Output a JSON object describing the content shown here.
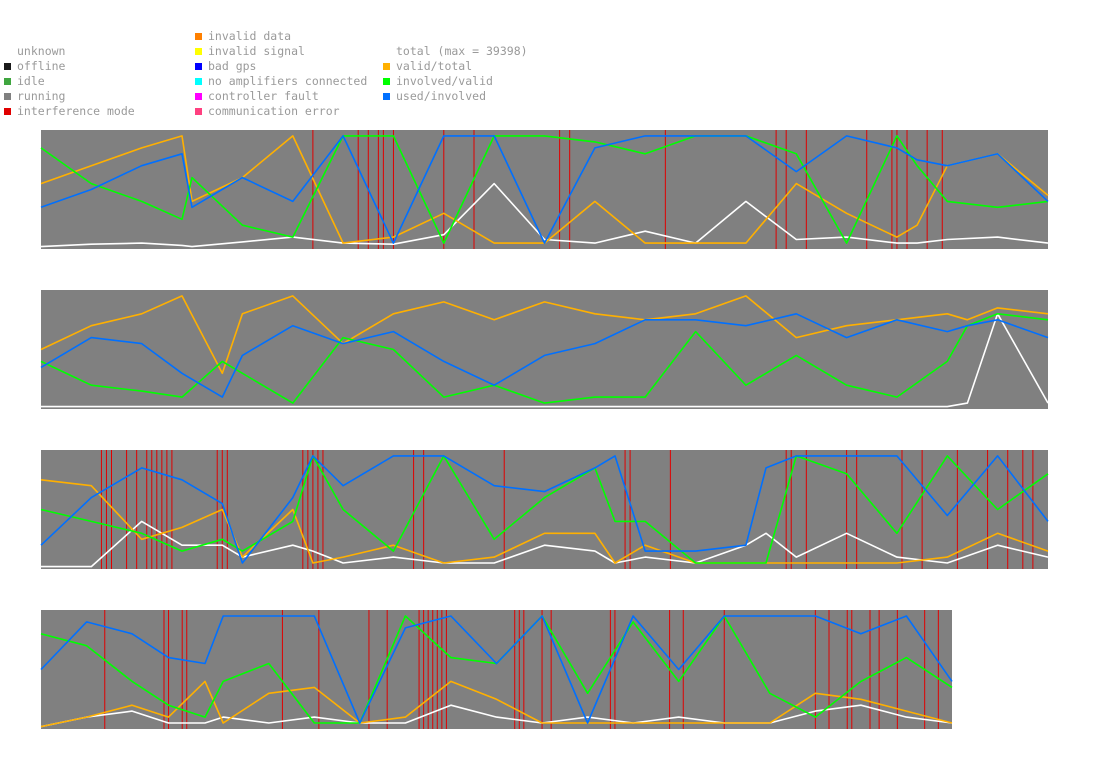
{
  "legend": {
    "col1": [
      {
        "label": "unknown",
        "color": ""
      },
      {
        "label": "offline",
        "color": "#1a1a1a"
      },
      {
        "label": "idle",
        "color": "#3fa63f"
      },
      {
        "label": "running",
        "color": "#808080"
      },
      {
        "label": "interference mode",
        "color": "#e00000"
      }
    ],
    "col2": [
      {
        "label": "invalid data",
        "color": "#ff8000"
      },
      {
        "label": "invalid signal",
        "color": "#ffff00"
      },
      {
        "label": "bad gps",
        "color": "#0000ff"
      },
      {
        "label": "no amplifiers connected",
        "color": "#00ffff"
      },
      {
        "label": "controller fault",
        "color": "#ff00ff"
      },
      {
        "label": "communication error",
        "color": "#ff4080"
      }
    ],
    "col3": [
      {
        "label": "total (max = 39398)",
        "color": ""
      },
      {
        "label": "valid/total",
        "color": "#ffb000"
      },
      {
        "label": "involved/valid",
        "color": "#00ff00"
      },
      {
        "label": "used/involved",
        "color": "#0070ff"
      }
    ]
  },
  "chart_data": {
    "type": "line",
    "panels": 4,
    "background_color": "#808080",
    "ylim": [
      0,
      1
    ],
    "total_max": 39398,
    "series": [
      {
        "name": "total (max = 39398)",
        "color": "#ffffff"
      },
      {
        "name": "valid/total",
        "color": "#ffb000"
      },
      {
        "name": "involved/valid",
        "color": "#00ff00"
      },
      {
        "name": "used/involved",
        "color": "#0070ff"
      }
    ],
    "panel_data": [
      {
        "x": [
          0,
          5,
          10,
          14,
          15,
          20,
          25,
          30,
          35,
          40,
          45,
          50,
          55,
          60,
          65,
          70,
          75,
          80,
          85,
          87,
          90,
          95,
          100
        ],
        "total": [
          0.02,
          0.04,
          0.05,
          0.03,
          0.02,
          0.06,
          0.1,
          0.05,
          0.04,
          0.12,
          0.55,
          0.08,
          0.05,
          0.15,
          0.05,
          0.4,
          0.08,
          0.1,
          0.05,
          0.05,
          0.08,
          0.1,
          0.05
        ],
        "valid_total": [
          0.55,
          0.7,
          0.85,
          0.95,
          0.4,
          0.6,
          0.95,
          0.05,
          0.1,
          0.3,
          0.05,
          0.05,
          0.4,
          0.05,
          0.05,
          0.05,
          0.55,
          0.3,
          0.1,
          0.2,
          0.7,
          0.8,
          0.45
        ],
        "involved_valid": [
          0.85,
          0.55,
          0.4,
          0.25,
          0.6,
          0.2,
          0.1,
          0.95,
          0.95,
          0.05,
          0.95,
          0.95,
          0.9,
          0.8,
          0.95,
          0.95,
          0.8,
          0.05,
          0.95,
          0.7,
          0.4,
          0.35,
          0.4
        ],
        "used_involved": [
          0.35,
          0.5,
          0.7,
          0.8,
          0.35,
          0.6,
          0.4,
          0.95,
          0.05,
          0.95,
          0.95,
          0.05,
          0.85,
          0.95,
          0.95,
          0.95,
          0.65,
          0.95,
          0.85,
          0.75,
          0.7,
          0.8,
          0.4
        ],
        "interference": [
          27.0,
          31.5,
          32.5,
          33.5,
          34.0,
          35.0,
          40.0,
          43.0,
          51.5,
          52.5,
          62.0,
          73.0,
          74.0,
          76.0,
          82.0,
          84.5,
          85.0,
          86.0,
          88.0,
          89.5
        ]
      },
      {
        "x": [
          0,
          5,
          10,
          14,
          18,
          20,
          25,
          30,
          35,
          40,
          45,
          50,
          55,
          60,
          65,
          70,
          75,
          80,
          85,
          90,
          92,
          95,
          100
        ],
        "total": [
          0.02,
          0.02,
          0.02,
          0.02,
          0.02,
          0.02,
          0.02,
          0.02,
          0.02,
          0.02,
          0.02,
          0.02,
          0.02,
          0.02,
          0.02,
          0.02,
          0.02,
          0.02,
          0.02,
          0.02,
          0.05,
          0.8,
          0.05
        ],
        "valid_total": [
          0.5,
          0.7,
          0.8,
          0.95,
          0.3,
          0.8,
          0.95,
          0.55,
          0.8,
          0.9,
          0.75,
          0.9,
          0.8,
          0.75,
          0.8,
          0.95,
          0.6,
          0.7,
          0.75,
          0.8,
          0.75,
          0.85,
          0.8
        ],
        "involved_valid": [
          0.4,
          0.2,
          0.15,
          0.1,
          0.4,
          0.3,
          0.05,
          0.6,
          0.5,
          0.1,
          0.2,
          0.05,
          0.1,
          0.1,
          0.65,
          0.2,
          0.45,
          0.2,
          0.1,
          0.4,
          0.7,
          0.8,
          0.75
        ],
        "used_involved": [
          0.35,
          0.6,
          0.55,
          0.3,
          0.1,
          0.45,
          0.7,
          0.55,
          0.65,
          0.4,
          0.2,
          0.45,
          0.55,
          0.75,
          0.75,
          0.7,
          0.8,
          0.6,
          0.75,
          0.65,
          0.7,
          0.75,
          0.6
        ],
        "interference": []
      },
      {
        "x": [
          0,
          5,
          10,
          14,
          18,
          20,
          25,
          27,
          30,
          35,
          40,
          45,
          50,
          55,
          57,
          60,
          65,
          70,
          72,
          75,
          80,
          85,
          90,
          95,
          100
        ],
        "total": [
          0.02,
          0.02,
          0.4,
          0.2,
          0.2,
          0.1,
          0.2,
          0.15,
          0.05,
          0.1,
          0.05,
          0.05,
          0.2,
          0.15,
          0.05,
          0.1,
          0.05,
          0.2,
          0.3,
          0.1,
          0.3,
          0.1,
          0.05,
          0.2,
          0.1
        ],
        "valid_total": [
          0.75,
          0.7,
          0.25,
          0.35,
          0.5,
          0.1,
          0.5,
          0.05,
          0.1,
          0.2,
          0.05,
          0.1,
          0.3,
          0.3,
          0.05,
          0.2,
          0.05,
          0.05,
          0.05,
          0.05,
          0.05,
          0.05,
          0.1,
          0.3,
          0.15
        ],
        "involved_valid": [
          0.5,
          0.4,
          0.3,
          0.15,
          0.25,
          0.15,
          0.4,
          0.95,
          0.5,
          0.15,
          0.95,
          0.25,
          0.6,
          0.85,
          0.4,
          0.4,
          0.05,
          0.05,
          0.05,
          0.95,
          0.8,
          0.3,
          0.95,
          0.5,
          0.8
        ],
        "used_involved": [
          0.2,
          0.6,
          0.85,
          0.75,
          0.55,
          0.05,
          0.6,
          0.95,
          0.7,
          0.95,
          0.95,
          0.7,
          0.65,
          0.85,
          0.95,
          0.15,
          0.15,
          0.2,
          0.85,
          0.95,
          0.95,
          0.95,
          0.45,
          0.95,
          0.4
        ],
        "interference": [
          6.0,
          6.5,
          7.0,
          8.5,
          9.5,
          10.5,
          11.0,
          11.5,
          12.0,
          12.5,
          13.0,
          17.5,
          18.0,
          18.5,
          26.0,
          26.5,
          27.0,
          27.5,
          28.0,
          37.0,
          38.0,
          46.0,
          58.0,
          58.5,
          62.5,
          74.0,
          74.5,
          76.0,
          80.0,
          81.0,
          85.5,
          87.5,
          91.0,
          94.0,
          96.0,
          97.5,
          98.5
        ]
      },
      {
        "x": [
          0,
          5,
          10,
          14,
          18,
          20,
          25,
          30,
          35,
          40,
          45,
          50,
          55,
          60,
          65,
          70,
          75,
          80,
          85,
          90,
          95,
          100
        ],
        "total": [
          0.02,
          0.1,
          0.15,
          0.05,
          0.05,
          0.1,
          0.05,
          0.1,
          0.05,
          0.05,
          0.2,
          0.1,
          0.05,
          0.1,
          0.05,
          0.1,
          0.05,
          0.05,
          0.15,
          0.2,
          0.1,
          0.05
        ],
        "valid_total": [
          0.02,
          0.1,
          0.2,
          0.1,
          0.4,
          0.05,
          0.3,
          0.35,
          0.05,
          0.1,
          0.4,
          0.25,
          0.05,
          0.05,
          0.05,
          0.05,
          0.05,
          0.05,
          0.3,
          0.25,
          0.15,
          0.05
        ],
        "involved_valid": [
          0.8,
          0.7,
          0.4,
          0.2,
          0.1,
          0.4,
          0.55,
          0.05,
          0.05,
          0.95,
          0.6,
          0.55,
          0.95,
          0.3,
          0.9,
          0.4,
          0.95,
          0.3,
          0.1,
          0.4,
          0.6,
          0.35
        ],
        "used_involved": [
          0.5,
          0.9,
          0.8,
          0.6,
          0.55,
          0.95,
          0.95,
          0.95,
          0.05,
          0.85,
          0.95,
          0.55,
          0.95,
          0.05,
          0.95,
          0.5,
          0.95,
          0.95,
          0.95,
          0.8,
          0.95,
          0.4
        ],
        "interference": [
          7.0,
          13.5,
          14.0,
          15.5,
          16.0,
          26.5,
          30.5,
          36.0,
          38.0,
          41.5,
          42.0,
          42.5,
          43.0,
          43.5,
          44.0,
          44.5,
          52.0,
          52.5,
          53.0,
          55.0,
          56.0,
          62.5,
          63.0,
          69.0,
          70.5,
          75.0,
          85.0,
          86.5,
          88.5,
          89.0,
          91.0,
          92.0,
          94.0,
          97.0,
          98.5
        ]
      }
    ]
  }
}
